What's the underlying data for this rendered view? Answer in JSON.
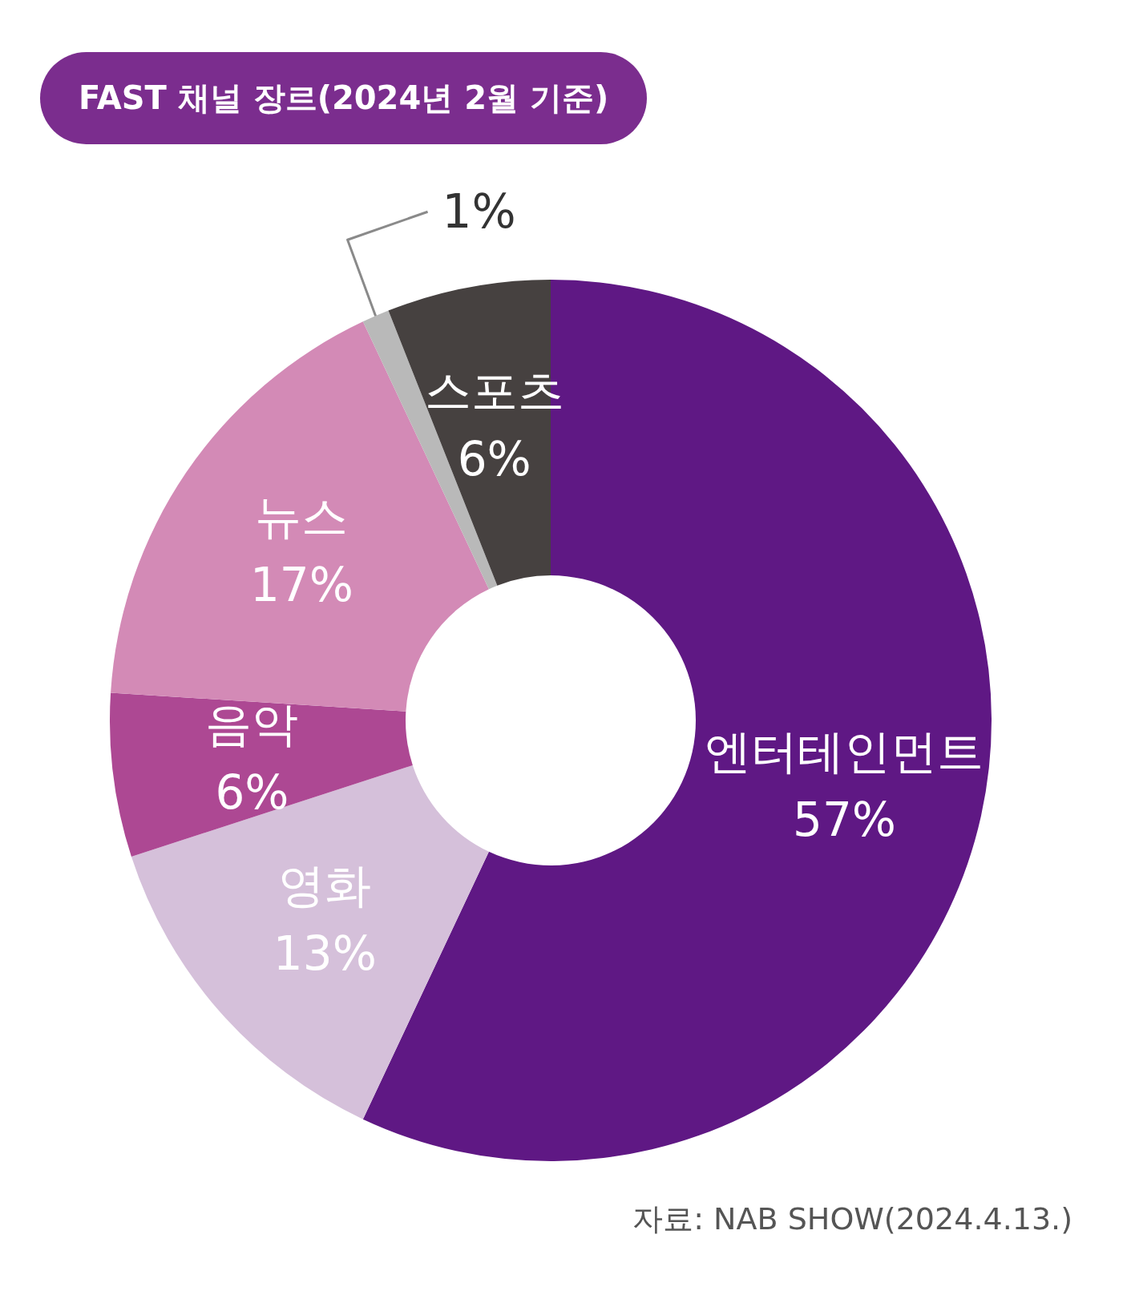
{
  "chart_data": {
    "type": "donut",
    "title": "FAST 채널 장르(2024년 2월 기준)",
    "categories": [
      "엔터테인먼트",
      "영화",
      "음악",
      "뉴스",
      null,
      "스포츠"
    ],
    "values": [
      57,
      13,
      6,
      17,
      1,
      6
    ],
    "value_labels": [
      "57%",
      "13%",
      "6%",
      "17%",
      "1%",
      "6%"
    ],
    "colors": [
      "#5f1884",
      "#d5c0da",
      "#ad4893",
      "#d38ab6",
      "#b9b9b9",
      "#464140"
    ],
    "annotations": [
      "자료: NAB SHOW(2024.4.13.)"
    ]
  }
}
